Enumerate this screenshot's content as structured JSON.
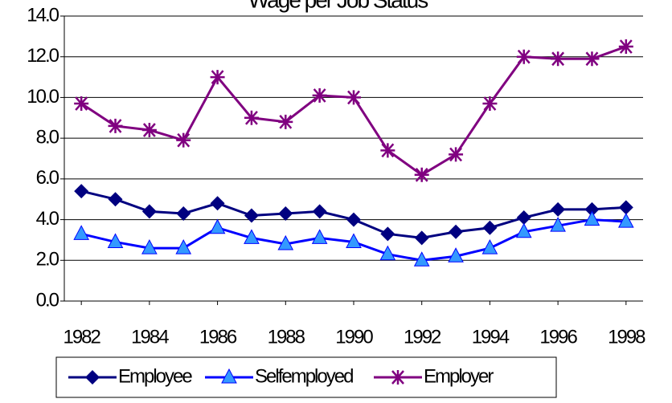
{
  "chart_data": {
    "type": "line",
    "title": "Wage per Job Status",
    "x": [
      1982,
      1983,
      1984,
      1985,
      1986,
      1987,
      1988,
      1989,
      1990,
      1991,
      1992,
      1993,
      1994,
      1995,
      1996,
      1997,
      1998
    ],
    "xlim": [
      1981.5,
      1998.5
    ],
    "xticks": [
      1982,
      1984,
      1986,
      1988,
      1990,
      1992,
      1994,
      1996,
      1998
    ],
    "ylim": [
      0,
      14
    ],
    "yticks": [
      {
        "value": 0,
        "label": "0.0"
      },
      {
        "value": 2,
        "label": "2.0"
      },
      {
        "value": 4,
        "label": "4.0"
      },
      {
        "value": 6,
        "label": "6.0"
      },
      {
        "value": 8,
        "label": "8.0"
      },
      {
        "value": 10,
        "label": "10.0"
      },
      {
        "value": 12,
        "label": "12.0"
      },
      {
        "value": 14,
        "label": "14.0"
      }
    ],
    "grid": true,
    "legend": "bottom",
    "series": [
      {
        "name": "Employee",
        "color": "#000080",
        "marker": "diamond",
        "values": [
          5.4,
          5.0,
          4.4,
          4.3,
          4.8,
          4.2,
          4.3,
          4.4,
          4.0,
          3.3,
          3.1,
          3.4,
          3.6,
          4.1,
          4.5,
          4.5,
          4.6
        ]
      },
      {
        "name": "Selfemployed",
        "color": "#0000ff",
        "marker": "triangle",
        "values": [
          3.3,
          2.9,
          2.6,
          2.6,
          3.6,
          3.1,
          2.8,
          3.1,
          2.9,
          2.3,
          2.0,
          2.2,
          2.6,
          3.4,
          3.7,
          4.0,
          3.9
        ]
      },
      {
        "name": "Employer",
        "color": "#800080",
        "marker": "star",
        "values": [
          9.7,
          8.6,
          8.4,
          7.9,
          11.0,
          9.0,
          8.8,
          10.1,
          10.0,
          7.4,
          6.2,
          7.2,
          9.7,
          12.0,
          11.9,
          11.9,
          12.5
        ]
      }
    ]
  }
}
